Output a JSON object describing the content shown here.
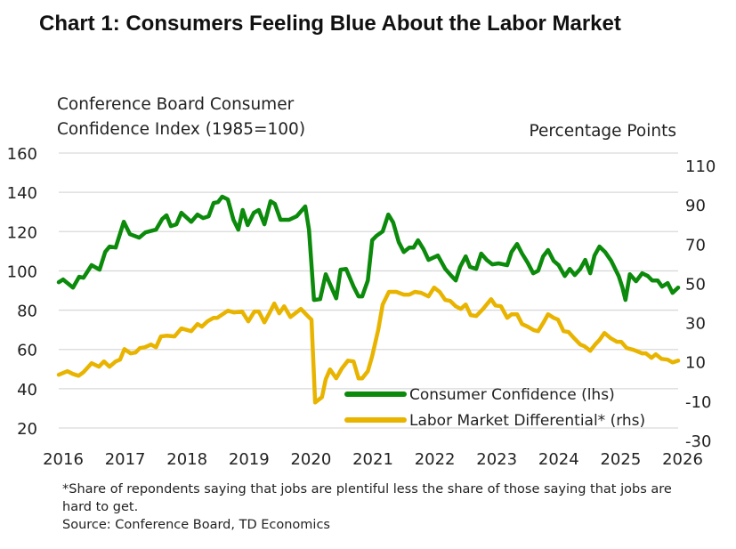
{
  "title": "Chart 1: Consumers Feeling Blue About the Labor Market",
  "chart_data": {
    "type": "line",
    "title": "Chart 1: Consumers Feeling Blue About the Labor Market",
    "ylabel_left": "Conference Board Consumer Confidence Index (1985=100)",
    "ylabel_right": "Percentage Points",
    "xlim": [
      2016,
      2026
    ],
    "ylim_left": [
      20,
      160
    ],
    "ylim_right": [
      -30,
      110
    ],
    "x_ticks": [
      "2016",
      "2017",
      "2018",
      "2019",
      "2020",
      "2021",
      "2022",
      "2023",
      "2024",
      "2025",
      "2026"
    ],
    "y_ticks_left": [
      "20",
      "40",
      "60",
      "80",
      "100",
      "120",
      "140",
      "160"
    ],
    "y_ticks_right": [
      "-30",
      "-10",
      "10",
      "30",
      "50",
      "70",
      "90",
      "110"
    ],
    "grid": "horizontal",
    "legend_placement": "bottom-right",
    "footnote": "*Share of repondents saying that jobs are plentiful less the share of those saying that jobs are hard to get.",
    "source": "Source: Conference Board, TD Economics",
    "series": [
      {
        "name": "Consumer Confidence (lhs)",
        "axis": "left",
        "color": "#0b8a0b",
        "x": [
          2016.0,
          2016.07,
          2016.23,
          2016.33,
          2016.4,
          2016.53,
          2016.66,
          2016.75,
          2016.82,
          2016.92,
          2017.05,
          2017.15,
          2017.3,
          2017.4,
          2017.57,
          2017.67,
          2017.74,
          2017.81,
          2017.9,
          2017.98,
          2018.14,
          2018.24,
          2018.33,
          2018.42,
          2018.5,
          2018.57,
          2018.64,
          2018.73,
          2018.82,
          2018.9,
          2018.97,
          2019.05,
          2019.15,
          2019.23,
          2019.32,
          2019.42,
          2019.49,
          2019.58,
          2019.72,
          2019.84,
          2019.98,
          2020.04,
          2020.12,
          2020.22,
          2020.31,
          2020.48,
          2020.55,
          2020.64,
          2020.76,
          2020.84,
          2020.9,
          2020.99,
          2021.06,
          2021.13,
          2021.23,
          2021.32,
          2021.4,
          2021.49,
          2021.57,
          2021.66,
          2021.73,
          2021.8,
          2021.89,
          2021.97,
          2022.12,
          2022.24,
          2022.34,
          2022.41,
          2022.48,
          2022.57,
          2022.64,
          2022.74,
          2022.82,
          2022.91,
          2023.0,
          2023.1,
          2023.24,
          2023.31,
          2023.4,
          2023.48,
          2023.57,
          2023.66,
          2023.74,
          2023.82,
          2023.9,
          2023.99,
          2024.07,
          2024.17,
          2024.25,
          2024.33,
          2024.42,
          2024.5,
          2024.58,
          2024.65,
          2024.73,
          2024.82,
          2024.92,
          2025.04,
          2025.1,
          2025.15,
          2025.22,
          2025.32,
          2025.42,
          2025.51,
          2025.58,
          2025.67,
          2025.74,
          2025.83,
          2025.91,
          2026.0
        ],
        "values": [
          94.2,
          95.6,
          91.5,
          97,
          96.5,
          102.9,
          100.6,
          109.6,
          112.4,
          111.9,
          125,
          118.7,
          116.9,
          119.6,
          121,
          126.4,
          128.3,
          122.8,
          123.7,
          129.6,
          125,
          128.7,
          126.9,
          127.8,
          134.6,
          135,
          137.8,
          136.4,
          126,
          121,
          131,
          123.3,
          129.6,
          131,
          123.7,
          135.5,
          134.1,
          126,
          126,
          127.8,
          132.8,
          121,
          85.2,
          85.6,
          98.3,
          86,
          100.6,
          101,
          92,
          87,
          87,
          95.1,
          115.6,
          117.8,
          120.1,
          128.7,
          124.6,
          114.6,
          109.6,
          111.9,
          111.9,
          115.6,
          111,
          105.6,
          107.8,
          101,
          97.4,
          95.1,
          102,
          107.4,
          102,
          101,
          108.8,
          105.6,
          103.3,
          103.8,
          102.9,
          109.6,
          113.7,
          108.8,
          104.2,
          98.8,
          100.1,
          107.4,
          110.6,
          105.1,
          102.9,
          97.4,
          101,
          97.9,
          101,
          105.6,
          98.8,
          107.8,
          112.4,
          109.6,
          105.1,
          97.4,
          91.5,
          85.2,
          98.3,
          94.7,
          98.8,
          97.4,
          95.1,
          95.1,
          92,
          93.8,
          88.8,
          91.5
        ]
      },
      {
        "name": "Labor Market Differential* (rhs)",
        "axis": "right",
        "color": "#e8b400",
        "x": [
          2016.0,
          2016.14,
          2016.23,
          2016.32,
          2016.4,
          2016.53,
          2016.65,
          2016.73,
          2016.82,
          2016.92,
          2016.99,
          2017.06,
          2017.16,
          2017.24,
          2017.31,
          2017.39,
          2017.49,
          2017.57,
          2017.65,
          2017.74,
          2017.87,
          2017.98,
          2018.14,
          2018.24,
          2018.31,
          2018.4,
          2018.5,
          2018.56,
          2018.73,
          2018.83,
          2018.96,
          2019.06,
          2019.16,
          2019.23,
          2019.32,
          2019.4,
          2019.48,
          2019.56,
          2019.64,
          2019.74,
          2019.91,
          2020.02,
          2020.08,
          2020.14,
          2020.25,
          2020.31,
          2020.38,
          2020.48,
          2020.57,
          2020.67,
          2020.76,
          2020.84,
          2020.9,
          2020.99,
          2021.06,
          2021.16,
          2021.23,
          2021.33,
          2021.45,
          2021.57,
          2021.66,
          2021.75,
          2021.85,
          2021.97,
          2022.06,
          2022.15,
          2022.24,
          2022.32,
          2022.41,
          2022.49,
          2022.57,
          2022.65,
          2022.74,
          2022.85,
          2022.98,
          2023.05,
          2023.14,
          2023.24,
          2023.31,
          2023.4,
          2023.48,
          2023.57,
          2023.67,
          2023.74,
          2023.82,
          2023.9,
          2023.99,
          2024.06,
          2024.15,
          2024.23,
          2024.32,
          2024.42,
          2024.49,
          2024.58,
          2024.66,
          2024.73,
          2024.81,
          2024.91,
          2025.01,
          2025.08,
          2025.17,
          2025.28,
          2025.42,
          2025.48,
          2025.57,
          2025.64,
          2025.73,
          2025.83,
          2025.91,
          2026.0
        ],
        "values": [
          -2.9,
          -1.1,
          -2.5,
          -3.4,
          -1.6,
          3,
          1.2,
          3.9,
          1.2,
          3.9,
          4.8,
          10.2,
          8,
          8.4,
          10.7,
          11.1,
          12.5,
          11.1,
          16.6,
          17,
          16.6,
          20.7,
          19.3,
          22.9,
          21.6,
          24.3,
          26.1,
          26.1,
          29.7,
          28.8,
          29.3,
          24.3,
          29.3,
          29.3,
          23.8,
          28.4,
          33.4,
          28.4,
          32,
          26.5,
          30.6,
          27,
          25.2,
          -17,
          -14.3,
          -5.2,
          -0.2,
          -4.7,
          0.3,
          4.3,
          3.9,
          -4.7,
          -4.7,
          -1.1,
          6.6,
          20.2,
          32.9,
          39.3,
          39.3,
          37.9,
          37.9,
          39.3,
          38.8,
          37,
          41.5,
          39.3,
          35.2,
          34.7,
          32,
          30.6,
          32.9,
          27.5,
          27,
          30.6,
          35.6,
          32.4,
          32,
          26.1,
          27.9,
          27.9,
          22.9,
          21.6,
          19.8,
          19.3,
          23.4,
          27.9,
          26.1,
          25.2,
          19.3,
          18.9,
          15.7,
          12.5,
          11.6,
          9.3,
          12.5,
          14.8,
          18.4,
          15.7,
          13.9,
          13.9,
          10.7,
          9.8,
          8,
          8,
          5.7,
          7.5,
          5.2,
          4.8,
          3.4,
          4.3
        ]
      }
    ]
  }
}
